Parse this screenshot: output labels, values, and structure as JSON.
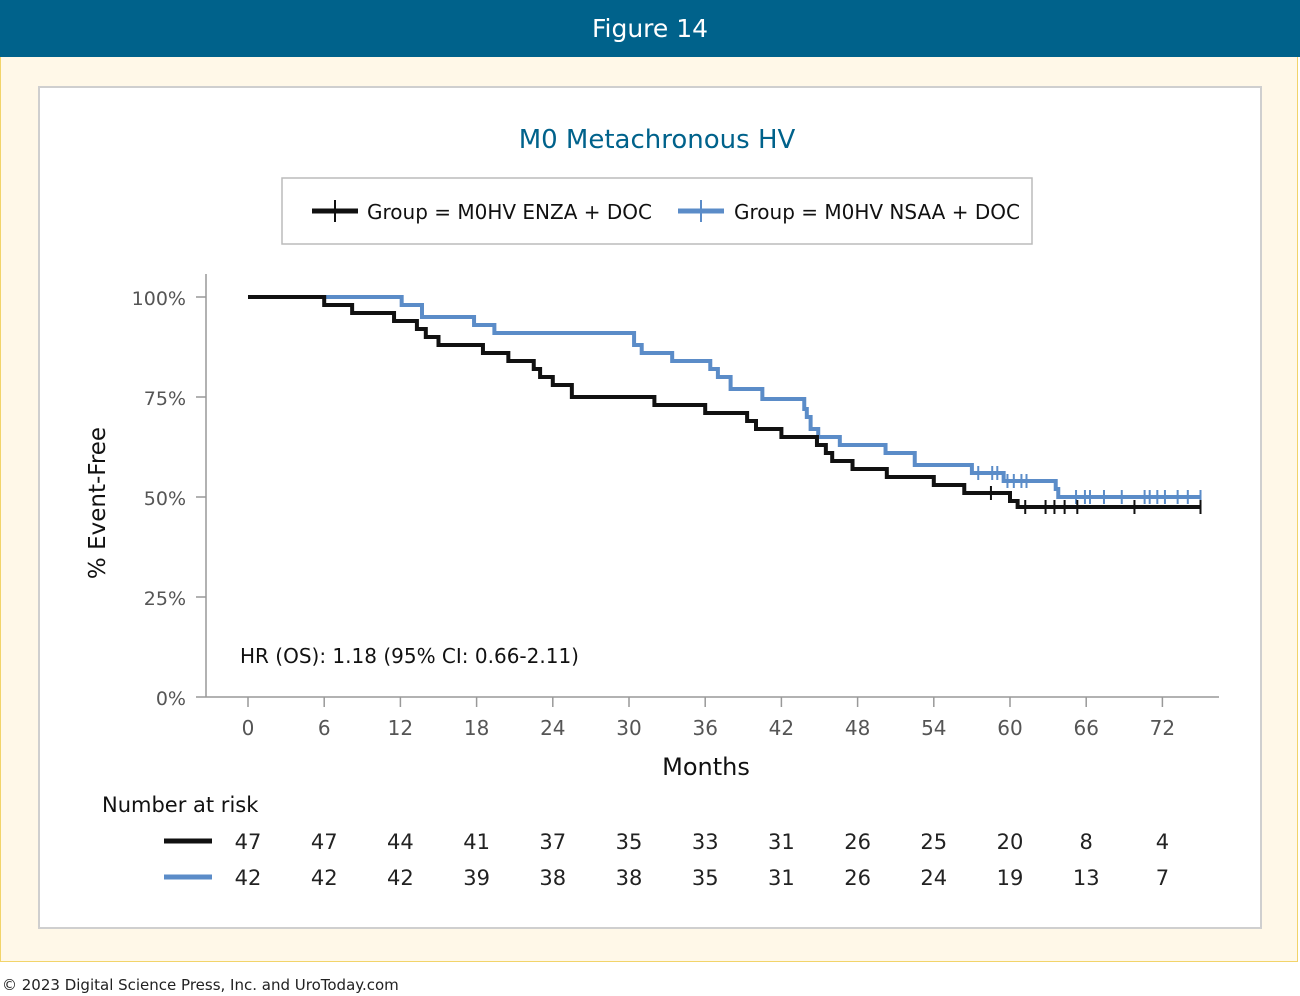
{
  "header": {
    "title": "Figure 14"
  },
  "footer": {
    "copyright": "© 2023 Digital Science Press, Inc. and UroToday.com"
  },
  "chart_data": {
    "type": "line",
    "subtype": "kaplan-meier",
    "title": "M0 Metachronous HV",
    "xlabel": "Months",
    "ylabel": "% Event-Free",
    "xlim": [
      0,
      75
    ],
    "ylim": [
      0,
      100
    ],
    "x_ticks": [
      0,
      6,
      12,
      18,
      24,
      30,
      36,
      42,
      48,
      54,
      60,
      66,
      72
    ],
    "y_ticks": [
      0,
      25,
      50,
      75,
      100
    ],
    "y_tick_labels": [
      "0%",
      "25%",
      "50%",
      "75%",
      "100%"
    ],
    "legend_position": "top",
    "annotation": "HR (OS): 1.18 (95% CI: 0.66-2.11)",
    "risk_table_title": "Number at risk",
    "series": [
      {
        "name": "Group = M0HV ENZA + DOC",
        "color": "#111111",
        "steps": [
          [
            0,
            100
          ],
          [
            6,
            98
          ],
          [
            8.2,
            96
          ],
          [
            11.5,
            94
          ],
          [
            13.3,
            92
          ],
          [
            14,
            90
          ],
          [
            15,
            88
          ],
          [
            18.5,
            86
          ],
          [
            20.5,
            84
          ],
          [
            22.5,
            82
          ],
          [
            23,
            80
          ],
          [
            24,
            78
          ],
          [
            25.5,
            75
          ],
          [
            32,
            73
          ],
          [
            36,
            71
          ],
          [
            39.3,
            69
          ],
          [
            40,
            67
          ],
          [
            42,
            65
          ],
          [
            44.8,
            63
          ],
          [
            45.5,
            61
          ],
          [
            46,
            59
          ],
          [
            47.6,
            57
          ],
          [
            50.3,
            55
          ],
          [
            54,
            53
          ],
          [
            56.4,
            51
          ],
          [
            60,
            49
          ],
          [
            60.6,
            47.5
          ]
        ],
        "end": 75,
        "censors": [
          [
            58.5,
            51
          ],
          [
            61.2,
            47.5
          ],
          [
            62.8,
            47.5
          ],
          [
            63.5,
            47.5
          ],
          [
            64.3,
            47.5
          ],
          [
            65.3,
            47.5
          ],
          [
            69.8,
            47.5
          ],
          [
            75,
            47.5
          ]
        ],
        "at_risk": [
          47,
          47,
          44,
          41,
          37,
          35,
          33,
          31,
          26,
          25,
          20,
          8,
          4
        ]
      },
      {
        "name": "Group = M0HV NSAA + DOC",
        "color": "#5b8cc8",
        "steps": [
          [
            0,
            100
          ],
          [
            12.1,
            98
          ],
          [
            13.7,
            95
          ],
          [
            17.8,
            93
          ],
          [
            19.4,
            91
          ],
          [
            30.4,
            88
          ],
          [
            31,
            86
          ],
          [
            33.4,
            84
          ],
          [
            36.4,
            82
          ],
          [
            37,
            80
          ],
          [
            38,
            77
          ],
          [
            40.5,
            74.5
          ],
          [
            43.8,
            72
          ],
          [
            44,
            70
          ],
          [
            44.3,
            67
          ],
          [
            44.9,
            65
          ],
          [
            46.6,
            63
          ],
          [
            50.2,
            61
          ],
          [
            52.5,
            58
          ],
          [
            57,
            56
          ],
          [
            59.5,
            54
          ],
          [
            63.6,
            52
          ],
          [
            63.8,
            50
          ]
        ],
        "end": 75,
        "censors": [
          [
            57.5,
            56
          ],
          [
            58.6,
            56
          ],
          [
            59,
            56
          ],
          [
            59.8,
            54
          ],
          [
            60.3,
            54
          ],
          [
            60.9,
            54
          ],
          [
            61.3,
            54
          ],
          [
            65.2,
            50
          ],
          [
            65.9,
            50
          ],
          [
            66.3,
            50
          ],
          [
            67.4,
            50
          ],
          [
            68.8,
            50
          ],
          [
            70.6,
            50
          ],
          [
            71,
            50
          ],
          [
            71.6,
            50
          ],
          [
            72.2,
            50
          ],
          [
            73.2,
            50
          ],
          [
            74,
            50
          ],
          [
            75,
            50
          ]
        ],
        "at_risk": [
          42,
          42,
          42,
          39,
          38,
          38,
          35,
          31,
          26,
          24,
          19,
          13,
          7
        ]
      }
    ]
  }
}
